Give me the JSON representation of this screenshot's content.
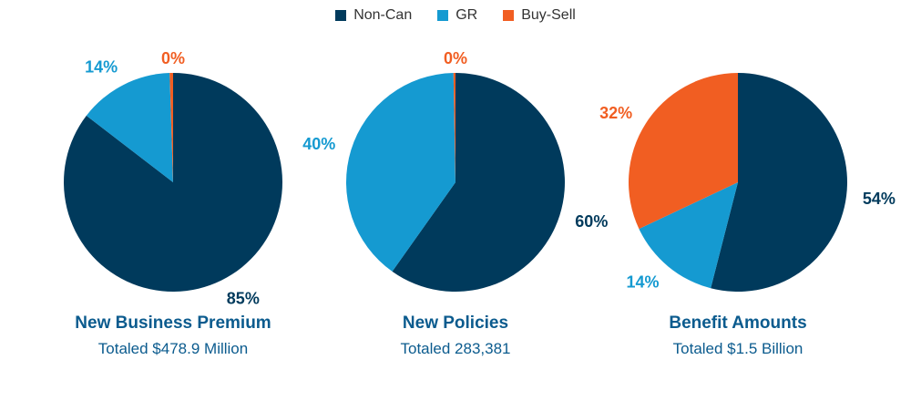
{
  "colors": {
    "non_can": "#003a5c",
    "gr": "#159ad1",
    "buy_sell": "#f15e22"
  },
  "legend": [
    {
      "label": "Non-Can",
      "color": "#003a5c"
    },
    {
      "label": "GR",
      "color": "#159ad1"
    },
    {
      "label": "Buy-Sell",
      "color": "#f15e22"
    }
  ],
  "chart_data": [
    {
      "type": "pie",
      "title": "New Business Premium",
      "subtitle": "Totaled $478.9 Million",
      "categories": [
        "Non-Can",
        "GR",
        "Buy-Sell"
      ],
      "values": [
        85,
        14,
        0.5
      ],
      "labels": [
        "85%",
        "14%",
        "0%"
      ]
    },
    {
      "type": "pie",
      "title": "New Policies",
      "subtitle": "Totaled 283,381",
      "categories": [
        "Non-Can",
        "GR",
        "Buy-Sell"
      ],
      "values": [
        60,
        40,
        0.3
      ],
      "labels": [
        "60%",
        "40%",
        "0%"
      ]
    },
    {
      "type": "pie",
      "title": "Benefit Amounts",
      "subtitle": "Totaled $1.5 Billion",
      "categories": [
        "Non-Can",
        "GR",
        "Buy-Sell"
      ],
      "values": [
        54,
        14,
        32
      ],
      "labels": [
        "54%",
        "14%",
        "32%"
      ]
    }
  ]
}
